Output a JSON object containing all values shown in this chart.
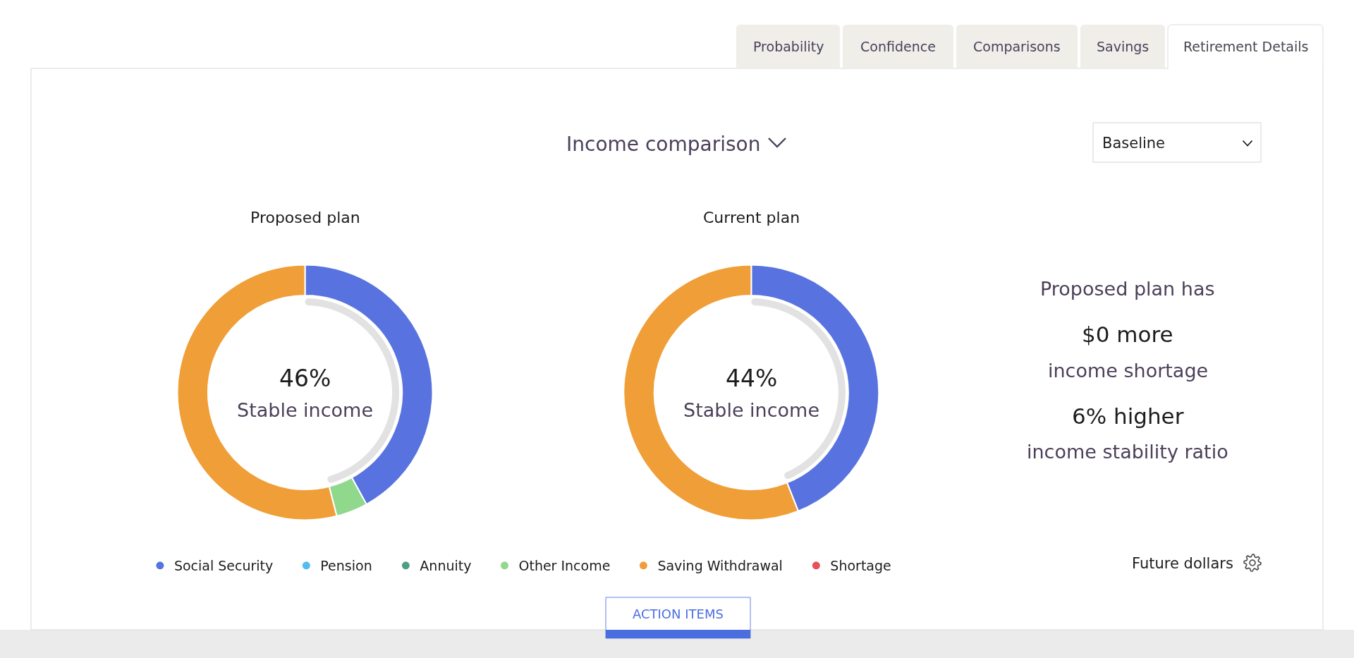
{
  "chart_data": [
    {
      "type": "other",
      "title": "Income comparison",
      "annotations": [
        "Probability",
        "Confidence",
        "Comparisons",
        "Savings",
        "Retirement Details",
        "Baseline"
      ]
    },
    {
      "type": "donut",
      "categories": [
        "Social Security",
        "Pension",
        "Annuity",
        "Other Income",
        "Saving Withdrawal",
        "Shortage"
      ],
      "series": [
        {
          "name": "Proposed plan",
          "colors": [
            "#5873df",
            "#53bcef",
            "#4c9e85",
            "#8fd88c",
            "#f09e37",
            "#e8505b"
          ],
          "values": [
            42,
            0,
            0,
            4,
            54,
            0
          ]
        },
        {
          "name": "Current plan",
          "colors": [
            "#5873df",
            "#53bcef",
            "#4c9e85",
            "#8fd88c",
            "#f09e37",
            "#e8505b"
          ],
          "values": [
            44,
            0,
            0,
            0,
            56,
            0
          ]
        }
      ],
      "legend": "bottom"
    },
    {
      "type": "other",
      "values": [
        46,
        44
      ],
      "value_labels": [
        "46%",
        "44%"
      ],
      "color": "#e2e2e2",
      "annotations": [
        "Stable income",
        "Stable income"
      ]
    },
    {
      "type": "other",
      "annotations": [
        "Proposed plan has",
        "$0 more",
        "income shortage",
        "6% higher",
        "income stability ratio"
      ]
    },
    {
      "type": "other",
      "annotations": [
        "Future dollars",
        "ACTION ITEMS"
      ]
    }
  ]
}
